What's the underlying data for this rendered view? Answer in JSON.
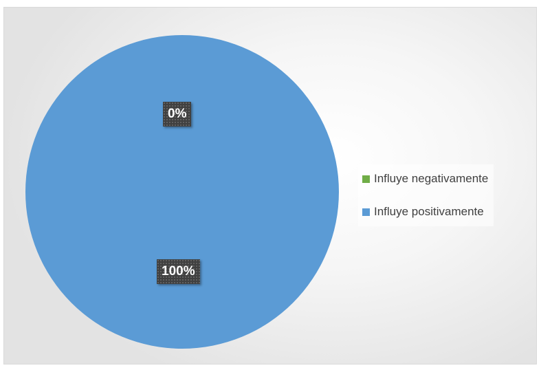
{
  "chart_data": {
    "type": "pie",
    "categories": [
      "Influye negativamente",
      "Influye positivamente"
    ],
    "values": [
      0,
      100
    ],
    "data_labels": [
      "0%",
      "100%"
    ],
    "colors": [
      "#70ad47",
      "#5b9bd5"
    ],
    "legend_position": "right"
  }
}
